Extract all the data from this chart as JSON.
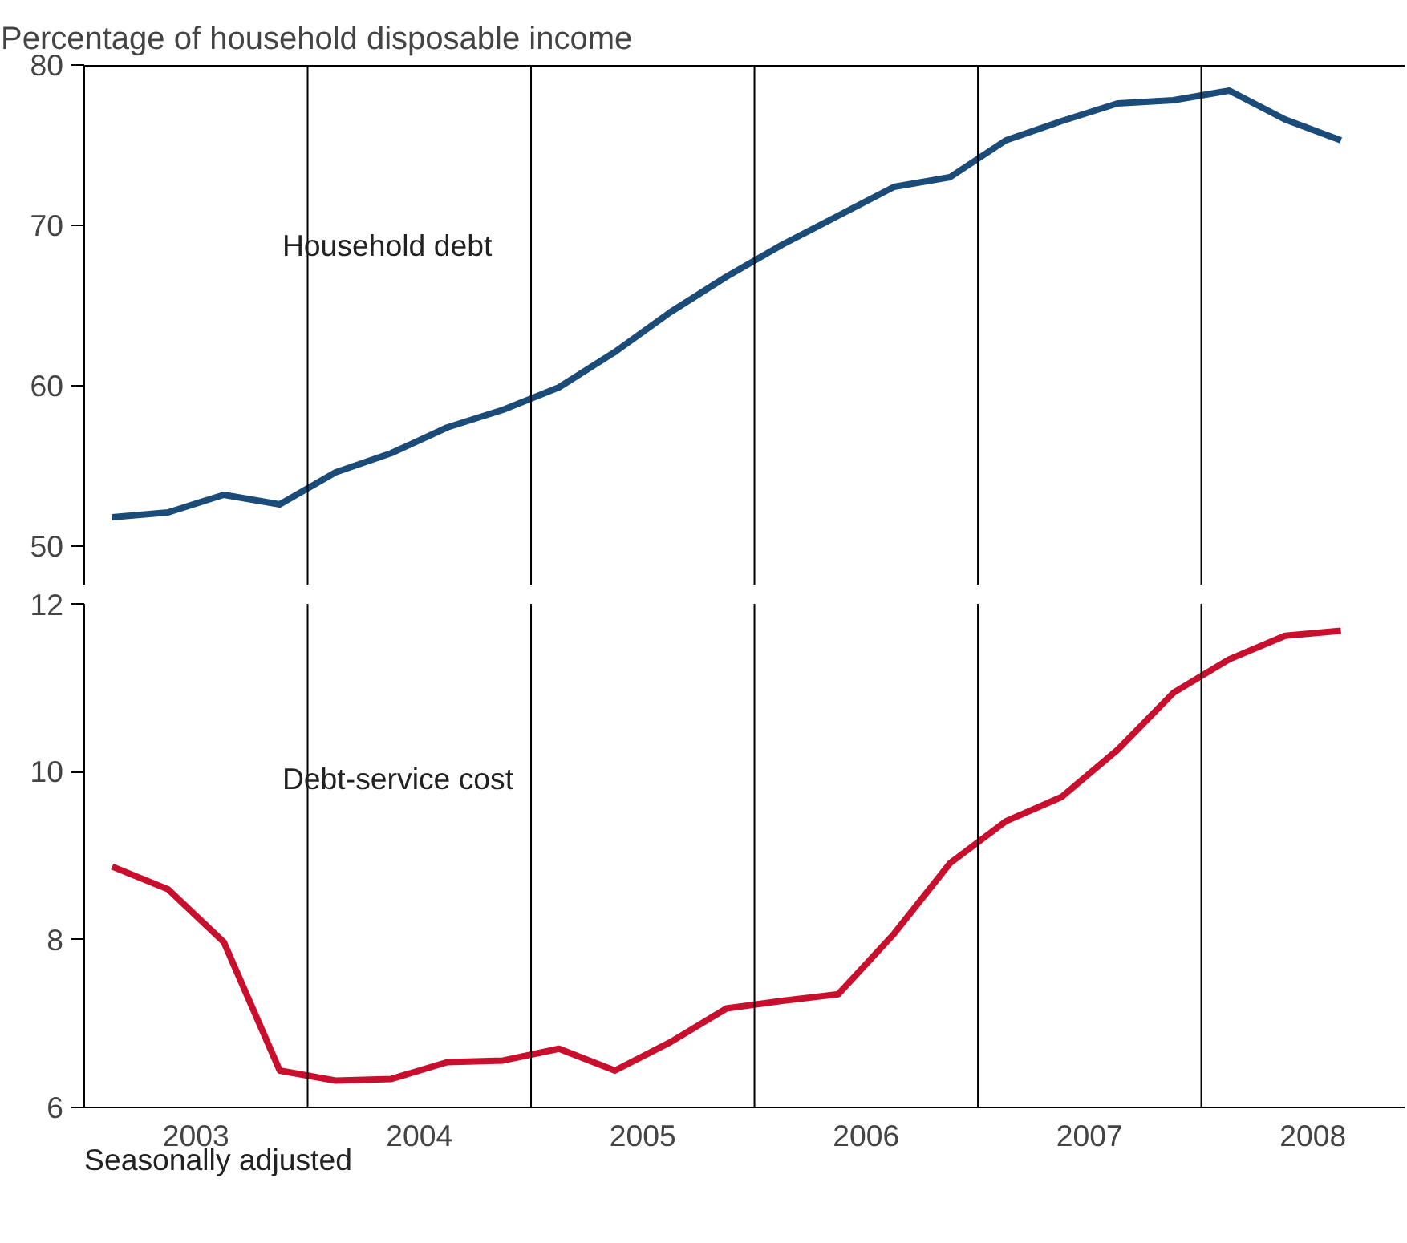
{
  "chart_data": [
    {
      "type": "line",
      "ylabel": "Percentage of household disposable income",
      "x": [
        2003.125,
        2003.375,
        2003.625,
        2003.875,
        2004.125,
        2004.375,
        2004.625,
        2004.875,
        2005.125,
        2005.375,
        2005.625,
        2005.875,
        2006.125,
        2006.375,
        2006.625,
        2006.875,
        2007.125,
        2007.375,
        2007.625,
        2007.875,
        2008.125,
        2008.375,
        2008.625
      ],
      "series": [
        {
          "name": "Household debt",
          "color": "#1b4b78",
          "values": [
            51.8,
            52.1,
            53.2,
            52.6,
            54.6,
            55.8,
            57.4,
            58.5,
            59.9,
            62.1,
            64.6,
            66.8,
            68.8,
            70.6,
            72.4,
            73.0,
            75.3,
            76.5,
            77.6,
            77.8,
            78.4,
            76.6,
            75.3
          ]
        }
      ],
      "xlim": [
        2003,
        2008.91
      ],
      "ylim": [
        47.6,
        80
      ],
      "yticks": [
        50,
        60,
        70,
        80
      ],
      "xticks": [
        {
          "value": 2004,
          "label": null
        },
        {
          "value": 2005,
          "label": null
        },
        {
          "value": 2006,
          "label": null
        },
        {
          "value": 2007,
          "label": null
        },
        {
          "value": 2008,
          "label": null
        }
      ],
      "grid": "x",
      "tick_labels": "y",
      "line_style": "solid",
      "marker": "none"
    },
    {
      "type": "line",
      "x": [
        2003.125,
        2003.375,
        2003.625,
        2003.875,
        2004.125,
        2004.375,
        2004.625,
        2004.875,
        2005.125,
        2005.375,
        2005.625,
        2005.875,
        2006.125,
        2006.375,
        2006.625,
        2006.875,
        2007.125,
        2007.375,
        2007.625,
        2007.875,
        2008.125,
        2008.375,
        2008.625
      ],
      "series": [
        {
          "name": "Debt-service cost",
          "color": "#c8102e",
          "values": [
            8.87,
            8.6,
            7.97,
            6.44,
            6.32,
            6.34,
            6.54,
            6.56,
            6.7,
            6.44,
            6.78,
            7.18,
            7.27,
            7.35,
            8.07,
            8.91,
            9.41,
            9.7,
            10.26,
            10.94,
            11.34,
            11.62,
            11.68
          ]
        }
      ],
      "xlim": [
        2003,
        2008.91
      ],
      "ylim": [
        6,
        12
      ],
      "yticks": [
        6,
        8,
        10,
        12
      ],
      "xticks": [
        {
          "value": 2003.5,
          "label": "2003"
        },
        {
          "value": 2004,
          "label": null
        },
        {
          "value": 2004.5,
          "label": "2004"
        },
        {
          "value": 2005,
          "label": null
        },
        {
          "value": 2005.5,
          "label": "2005"
        },
        {
          "value": 2006,
          "label": null
        },
        {
          "value": 2006.5,
          "label": "2006"
        },
        {
          "value": 2007,
          "label": null
        },
        {
          "value": 2007.5,
          "label": "2007"
        },
        {
          "value": 2008,
          "label": null
        },
        {
          "value": 2008.5,
          "label": "2008"
        }
      ],
      "grid": "x",
      "line_style": "solid",
      "marker": "none",
      "annotations": [
        "Seasonally adjusted"
      ]
    }
  ]
}
